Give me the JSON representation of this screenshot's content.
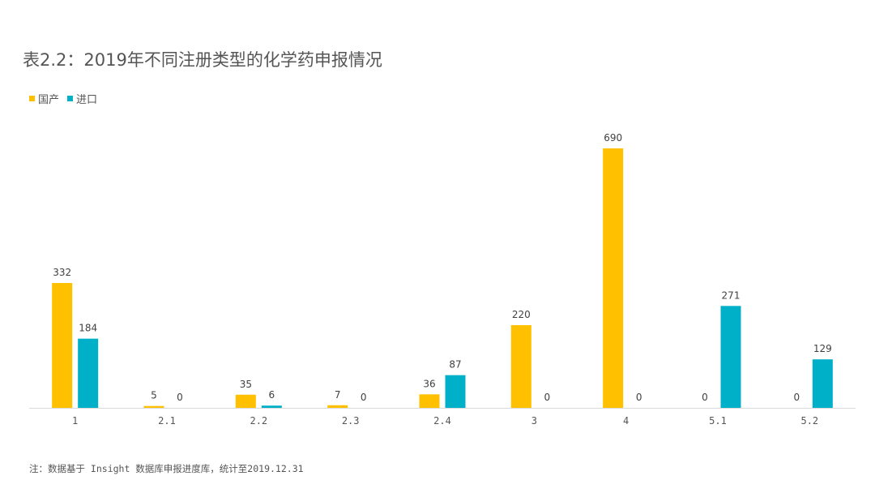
{
  "title": "表2.2：2019年不同注册类型的化学药申报情况",
  "legend": {
    "domestic": "国产",
    "imported": "进口"
  },
  "colors": {
    "domestic": "#FFC000",
    "imported": "#00B0C8",
    "axis": "#D9D9D9",
    "label": "#404040"
  },
  "chart_data": {
    "type": "bar",
    "categories": [
      "1",
      "2.1",
      "2.2",
      "2.3",
      "2.4",
      "3",
      "4",
      "5.1",
      "5.2"
    ],
    "series": [
      {
        "name": "国产",
        "values": [
          332,
          5,
          35,
          7,
          36,
          220,
          690,
          0,
          0
        ]
      },
      {
        "name": "进口",
        "values": [
          184,
          0,
          6,
          0,
          87,
          0,
          0,
          271,
          129
        ]
      }
    ],
    "data_labels": true,
    "legend_position": "top-left",
    "grid": false
  },
  "footnote": "注：数据基于 Insight 数据库申报进度库，统计至2019.12.31"
}
